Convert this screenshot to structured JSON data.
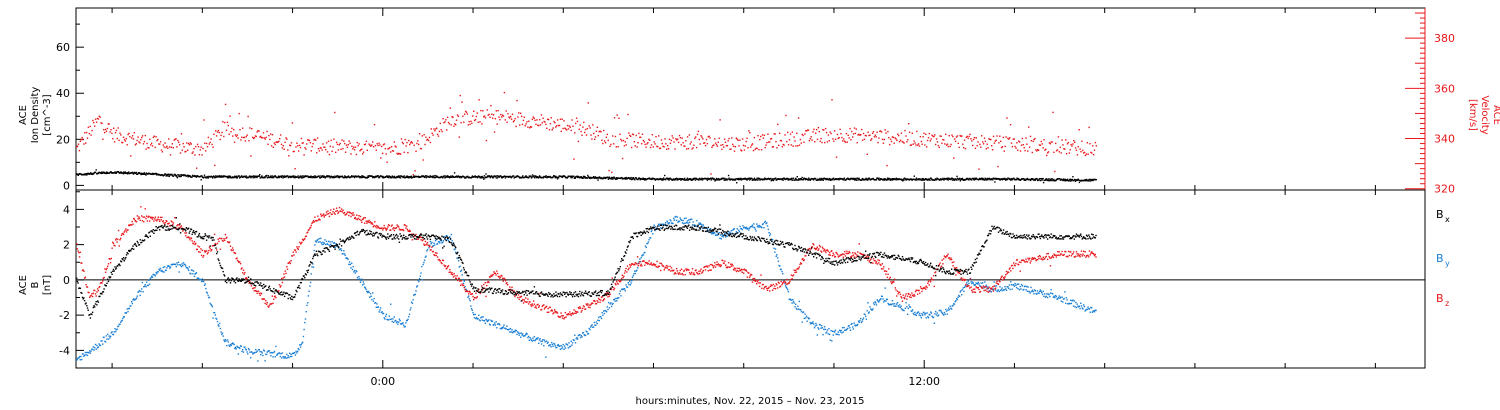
{
  "xlabel": "hours:minutes, Nov. 22, 2015 – Nov. 23, 2015",
  "colors": {
    "black": "#000000",
    "red": "#e8171b",
    "blue": "#1a7fd4"
  },
  "chart_data": [
    {
      "type": "scatter",
      "panel": "top",
      "ylabel_left": [
        "ACE",
        "Ion Density",
        "[cm^-3]"
      ],
      "ylabel_right": [
        "ACE",
        "Velocity",
        "[km/s]"
      ],
      "x_ticks": [
        {
          "hour": 0,
          "label": "0:00"
        },
        {
          "hour": 12,
          "label": "12:00"
        }
      ],
      "x_range_hours": [
        -6.8,
        23.1
      ],
      "data_end_hour": 15.8,
      "left_axis": {
        "ylim": [
          -2,
          77
        ],
        "ticks": [
          {
            "v": 0,
            "label": "0"
          },
          {
            "v": 20,
            "label": "20"
          },
          {
            "v": 40,
            "label": "40"
          },
          {
            "v": 60,
            "label": "60"
          }
        ]
      },
      "right_axis": {
        "ylim": [
          319.5,
          392
        ],
        "ticks": [
          {
            "v": 320,
            "label": "320"
          },
          {
            "v": 340,
            "label": "340"
          },
          {
            "v": 360,
            "label": "360"
          },
          {
            "v": 380,
            "label": "380"
          }
        ]
      },
      "series": [
        {
          "key": "density",
          "axis": "left",
          "color": "black",
          "x": [
            -6.8,
            -6,
            -5,
            -4,
            -3,
            -2,
            -1,
            0,
            1,
            2,
            3,
            4,
            5,
            6,
            8,
            10,
            12,
            14,
            15.8
          ],
          "y": [
            5,
            6,
            5,
            4,
            4,
            4,
            4,
            4,
            4,
            4,
            4,
            4,
            3.5,
            3,
            3,
            3,
            3,
            3,
            2.5
          ]
        },
        {
          "key": "velocity",
          "axis": "right",
          "color": "red",
          "x": [
            -6.8,
            -6.3,
            -6,
            -5,
            -4,
            -3.5,
            -3,
            -2,
            -1,
            0,
            0.8,
            1.5,
            2.5,
            3.5,
            4.5,
            5,
            6,
            7,
            8,
            9,
            10,
            11,
            12,
            13,
            14,
            15,
            15.8
          ],
          "y": [
            336,
            348,
            342,
            338,
            336,
            344,
            342,
            338,
            337,
            336,
            338,
            348,
            349,
            347,
            344,
            340,
            339,
            339,
            338,
            340,
            342,
            341,
            340,
            339,
            338,
            337,
            336
          ]
        }
      ]
    },
    {
      "type": "scatter",
      "panel": "bottom",
      "ylabel_left": [
        "ACE",
        "B",
        "[nT]"
      ],
      "ylim": [
        -5,
        5.1
      ],
      "y_ticks": [
        {
          "v": -4,
          "label": "-4"
        },
        {
          "v": -2,
          "label": "-2"
        },
        {
          "v": 0,
          "label": "0"
        },
        {
          "v": 2,
          "label": "2"
        },
        {
          "v": 4,
          "label": "4"
        }
      ],
      "legend_position": "right",
      "series": [
        {
          "key": "bx",
          "name": "B",
          "sub": "x",
          "color": "black",
          "x": [
            -6.8,
            -6.5,
            -6,
            -5.5,
            -5,
            -4.5,
            -4,
            -3.8,
            -3.5,
            -3,
            -2.5,
            -2,
            -1.5,
            -1,
            -0.5,
            0,
            0.5,
            1,
            1.5,
            2,
            3,
            4,
            5,
            5.5,
            6,
            7,
            8,
            9,
            10,
            11,
            12,
            12.5,
            13,
            13.5,
            14,
            15,
            15.8
          ],
          "y": [
            0,
            -2,
            0.5,
            2,
            3,
            3,
            2.5,
            2.5,
            0,
            0,
            -0.5,
            -1,
            1.5,
            2,
            2.8,
            2.5,
            2.5,
            2.5,
            2.3,
            -0.5,
            -0.7,
            -0.8,
            -0.7,
            2.5,
            3,
            3,
            2.5,
            2,
            1,
            1.5,
            1,
            0.5,
            0.5,
            3,
            2.5,
            2.5,
            2.5
          ]
        },
        {
          "key": "by",
          "name": "B",
          "sub": "y",
          "color": "blue",
          "x": [
            -6.8,
            -6.5,
            -6,
            -5.5,
            -5,
            -4.5,
            -4,
            -3.5,
            -3,
            -2,
            -1.8,
            -1.5,
            -1,
            -0.5,
            0,
            0.5,
            1,
            1.5,
            2,
            2.5,
            3,
            3.5,
            4,
            4.5,
            5,
            5.5,
            6,
            6.5,
            7,
            7.5,
            8,
            8.5,
            9,
            9.5,
            10,
            10.5,
            11,
            11.5,
            12,
            12.5,
            13,
            13.5,
            14,
            15,
            15.8
          ],
          "y": [
            -4.5,
            -4,
            -3,
            -1,
            0.5,
            1,
            0,
            -3.5,
            -4,
            -4.3,
            -3.5,
            2.3,
            2,
            0,
            -2,
            -2.5,
            2,
            2.5,
            -2,
            -2.5,
            -3,
            -3.5,
            -3.8,
            -3,
            -1.5,
            0,
            3,
            3.5,
            3.2,
            2.5,
            3,
            3.2,
            -1,
            -2.5,
            -3,
            -2.5,
            -1,
            -1.5,
            -2,
            -1.8,
            0,
            -0.5,
            -0.3,
            -1,
            -1.8
          ]
        },
        {
          "key": "bz",
          "name": "B",
          "sub": "z",
          "color": "red",
          "x": [
            -6.8,
            -6.5,
            -6.2,
            -6,
            -5.5,
            -5,
            -4.5,
            -4,
            -3.5,
            -3,
            -2.5,
            -2,
            -1.5,
            -1,
            -0.5,
            0,
            0.5,
            1,
            1.5,
            2,
            2.5,
            3,
            3.5,
            4,
            4.5,
            5,
            5.5,
            6,
            6.5,
            7,
            7.5,
            8,
            8.5,
            9,
            9.5,
            10,
            10.5,
            11,
            11.5,
            12,
            12.5,
            13,
            13.5,
            14,
            15,
            15.8
          ],
          "y": [
            2,
            -1,
            0,
            2,
            3.5,
            3.5,
            3,
            1.5,
            2.5,
            0,
            -1.5,
            1.5,
            3.5,
            4,
            3.5,
            3,
            3,
            2,
            0.5,
            -1,
            0.5,
            -1,
            -1.5,
            -2,
            -1.5,
            -0.8,
            1,
            1,
            0.5,
            0.5,
            1,
            0.5,
            -0.5,
            0,
            2,
            1.5,
            1.5,
            1,
            -1,
            -0.5,
            1.5,
            -0.5,
            -0.5,
            1,
            1.5,
            1.5
          ]
        }
      ]
    }
  ]
}
